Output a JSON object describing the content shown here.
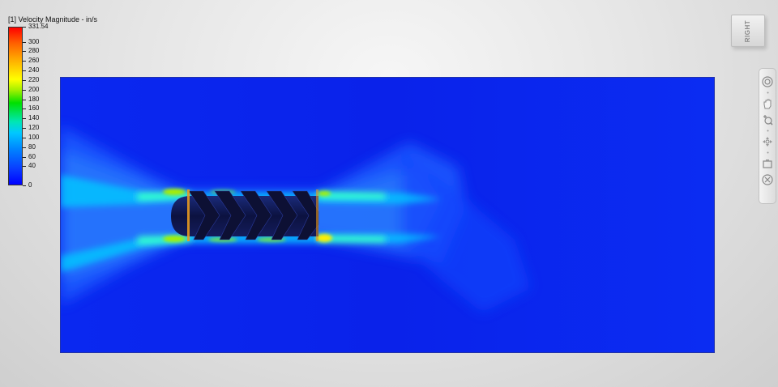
{
  "legend": {
    "title": "[1] Velocity Magnitude - in/s",
    "max_label": "331.54",
    "ticks": [
      "300",
      "280",
      "260",
      "240",
      "220",
      "200",
      "180",
      "160",
      "140",
      "120",
      "100",
      "80",
      "60",
      "40",
      "0"
    ]
  },
  "view_cube": {
    "face_label": "RIGHT"
  },
  "navigation": {
    "tools": [
      {
        "name": "steering-wheel-icon"
      },
      {
        "name": "pan-hand-icon"
      },
      {
        "name": "zoom-icon"
      },
      {
        "name": "orbit-icon"
      },
      {
        "name": "look-at-icon"
      },
      {
        "name": "center-icon"
      }
    ]
  },
  "colors": {
    "field_base": "#0a1ee6",
    "jet_cyan": "#00d8ff",
    "hotspot_yellow": "#ffee00",
    "impeller": "#10113a"
  }
}
